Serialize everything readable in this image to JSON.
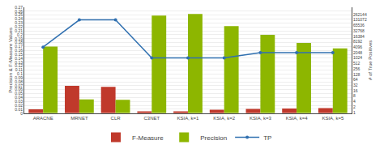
{
  "chart_data": {
    "type": "bar",
    "categories": [
      "ARACNE",
      "MRNET",
      "CLR",
      "C3NET",
      "KSIA, k=1",
      "KSIA, k=2",
      "KSIA, k=3",
      "KSIA, k=4",
      "KSIA, k=5"
    ],
    "series": [
      {
        "name": "F-Measure",
        "type": "bar",
        "color": "#c0392b",
        "values": [
          0.01,
          0.07,
          0.067,
          0.005,
          0.005,
          0.009,
          0.011,
          0.012,
          0.013
        ]
      },
      {
        "name": "Precision",
        "type": "bar",
        "color": "#8db600",
        "values": [
          0.17,
          0.035,
          0.034,
          0.249,
          0.253,
          0.222,
          0.2,
          0.179,
          0.165
        ]
      },
      {
        "name": "TP",
        "type": "line",
        "color": "#3070b0",
        "marker": "circle",
        "axis": "y2",
        "values": [
          4096,
          131072,
          131072,
          1024,
          1024,
          1024,
          2048,
          2048,
          2048
        ]
      }
    ],
    "ylabel": "Precision & F-Measure Values",
    "y2label": "# of True Positives",
    "ylim": [
      0,
      0.27
    ],
    "yticks": [
      0,
      0.01,
      0.02,
      0.03,
      0.04,
      0.05,
      0.06,
      0.07,
      0.08,
      0.09,
      0.1,
      0.11,
      0.12,
      0.13,
      0.14,
      0.15,
      0.16,
      0.17,
      0.18,
      0.19,
      0.2,
      0.21,
      0.22,
      0.23,
      0.24,
      0.25,
      0.26,
      0.27
    ],
    "y2lim": [
      0.9,
      655360
    ],
    "y2ticks": [
      1,
      2,
      4,
      8,
      16,
      32,
      64,
      128,
      256,
      512,
      1024,
      2048,
      4096,
      8192,
      16384,
      32768,
      65536,
      131072,
      262144
    ],
    "log": "y2",
    "grid": true,
    "legend": "bottom"
  }
}
